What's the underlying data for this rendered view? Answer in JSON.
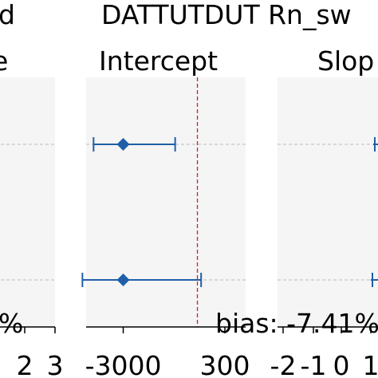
{
  "header": {
    "left_fragment": "d",
    "title": "DATTUTDUT Rn_sw"
  },
  "colors": {
    "panel_bg": "#f5f5f5",
    "marker": "#1f5fa8",
    "reference_line": "#cc2222",
    "row_line": "#bbbbbb"
  },
  "chart_data": [
    {
      "type": "scatter",
      "title": "e",
      "rows": [
        {
          "estimate": null,
          "ci_low": null,
          "ci_high": null
        },
        {
          "estimate": null,
          "ci_low": null,
          "ci_high": null
        }
      ],
      "xticks": [
        2,
        3
      ],
      "annotation": "%"
    },
    {
      "type": "scatter",
      "title": "Intercept",
      "reference_value": -1000,
      "xlim": [
        -4000,
        300
      ],
      "rows": [
        {
          "estimate": -3000,
          "ci_low": -3800,
          "ci_high": -1600
        },
        {
          "estimate": -3000,
          "ci_low": -4100,
          "ci_high": -900
        }
      ],
      "xticks": [
        -3000,
        300
      ],
      "xtick_labels": [
        "-3000",
        "300"
      ],
      "annotation": ""
    },
    {
      "type": "scatter",
      "title": "Slop",
      "rows": [
        {
          "estimate": null,
          "ci_low": null,
          "ci_high": null
        },
        {
          "estimate": null,
          "ci_low": null,
          "ci_high": null
        }
      ],
      "xticks": [
        -2,
        -1,
        0,
        1
      ],
      "xtick_labels": [
        "-2",
        "-1",
        "0",
        "1"
      ],
      "annotation": "bias: -7.41%"
    }
  ]
}
